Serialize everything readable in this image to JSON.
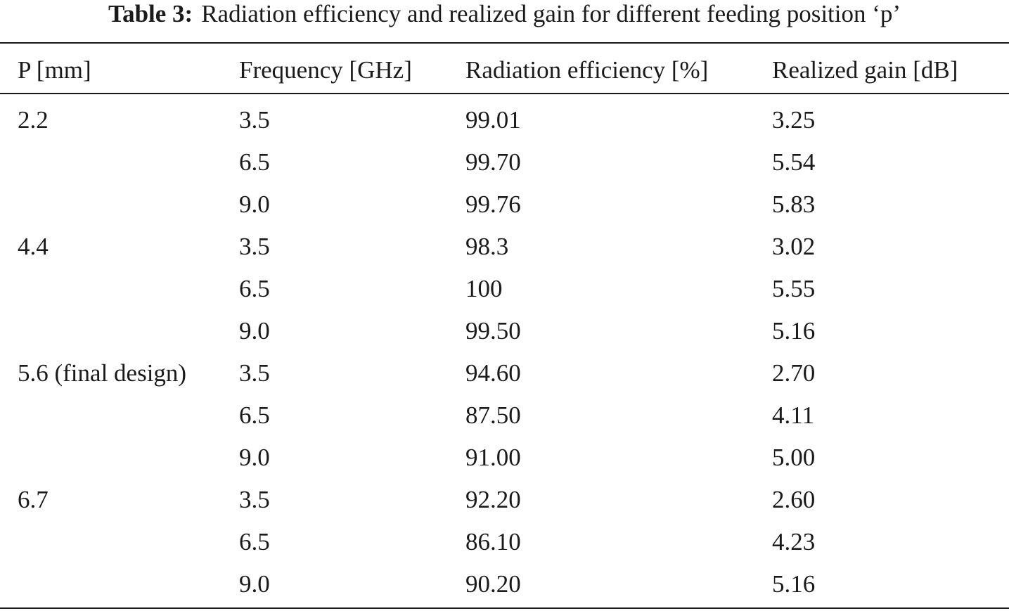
{
  "caption": {
    "label": "Table 3:",
    "text": "Radiation efficiency and realized gain for different feeding position ‘p’"
  },
  "table": {
    "headers": [
      "P [mm]",
      "Frequency [GHz]",
      "Radiation efficiency [%]",
      "Realized gain [dB]"
    ],
    "rows": [
      [
        "2.2",
        "3.5",
        "99.01",
        "3.25"
      ],
      [
        "",
        "6.5",
        "99.70",
        "5.54"
      ],
      [
        "",
        "9.0",
        "99.76",
        "5.83"
      ],
      [
        "4.4",
        "3.5",
        "98.3",
        "3.02"
      ],
      [
        "",
        "6.5",
        "100",
        "5.55"
      ],
      [
        "",
        "9.0",
        "99.50",
        "5.16"
      ],
      [
        "5.6 (final design)",
        "3.5",
        "94.60",
        "2.70"
      ],
      [
        "",
        "6.5",
        "87.50",
        "4.11"
      ],
      [
        "",
        "9.0",
        "91.00",
        "5.00"
      ],
      [
        "6.7",
        "3.5",
        "92.20",
        "2.60"
      ],
      [
        "",
        "6.5",
        "86.10",
        "4.23"
      ],
      [
        "",
        "9.0",
        "90.20",
        "5.16"
      ]
    ]
  }
}
